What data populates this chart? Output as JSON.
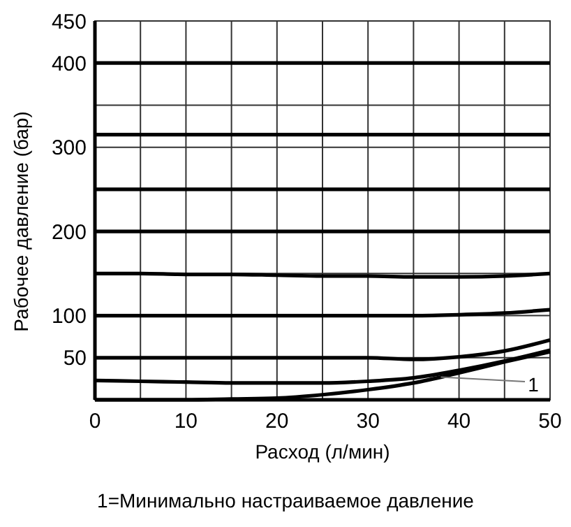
{
  "chart_data": {
    "type": "line",
    "xlabel": "Расход (л/мин)",
    "ylabel": "Рабочее давление (бар)",
    "x": [
      0,
      5,
      10,
      15,
      20,
      25,
      30,
      35,
      40,
      45,
      50
    ],
    "series": [
      {
        "color": "#000000",
        "values": [
          400,
          400,
          400,
          400,
          400,
          400,
          400,
          400,
          400,
          400,
          400
        ]
      },
      {
        "color": "#000000",
        "values": [
          315,
          315,
          315,
          315,
          315,
          315,
          315,
          315,
          315,
          315,
          315
        ]
      },
      {
        "color": "#000000",
        "values": [
          250,
          250,
          250,
          250,
          250,
          250,
          250,
          250,
          250,
          250,
          250
        ]
      },
      {
        "color": "#000000",
        "values": [
          200,
          200,
          200,
          200,
          200,
          200,
          200,
          200,
          200,
          200,
          200
        ]
      },
      {
        "color": "#000000",
        "values": [
          150,
          150,
          149,
          149,
          148,
          147,
          147,
          146,
          146,
          147,
          150
        ]
      },
      {
        "color": "#000000",
        "values": [
          100,
          100,
          100,
          100,
          100,
          100,
          100,
          100,
          101,
          103,
          107
        ]
      },
      {
        "color": "#000000",
        "values": [
          50,
          50,
          50,
          50,
          50,
          50,
          50,
          48,
          51,
          58,
          71
        ]
      },
      {
        "color": "#000000",
        "values": [
          23,
          22,
          21,
          20,
          20,
          20,
          22,
          26,
          35,
          46,
          59
        ]
      },
      {
        "color": "#000000",
        "values": [
          0,
          0,
          0,
          1,
          2,
          6,
          12,
          20,
          32,
          45,
          57
        ]
      }
    ],
    "xlim": [
      0,
      50
    ],
    "xticks": [
      0,
      {
        "value": 5,
        "label": null
      },
      10,
      {
        "value": 15,
        "label": null
      },
      20,
      {
        "value": 25,
        "label": null
      },
      30,
      {
        "value": 35,
        "label": null
      },
      40,
      {
        "value": 45,
        "label": null
      },
      50
    ],
    "ylim": [
      0,
      450
    ],
    "yticks": [
      {
        "value": 0,
        "label": null
      },
      50,
      100,
      {
        "value": 150,
        "label": null
      },
      200,
      300,
      {
        "value": 350,
        "label": null
      },
      400,
      450
    ],
    "grid": true,
    "marker": "none",
    "line_style": "solid",
    "annotations": [
      {
        "text": "1",
        "x": 38,
        "y": 27
      },
      "1=Минимально настраиваемое давление"
    ]
  }
}
